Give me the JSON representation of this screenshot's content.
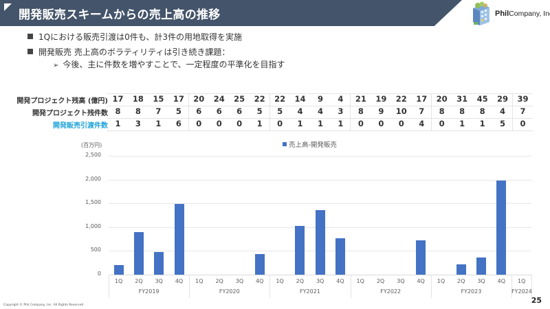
{
  "header": {
    "title": "開発販売スキームからの売上高の推移",
    "logo_brand": "Phil",
    "logo_suffix": "Company, Inc"
  },
  "bullets": [
    {
      "text": "1Qにおける販売引渡は0件も、計3件の用地取得を実施"
    },
    {
      "text": "開発販売 売上高のボラティリティは引き続き課題：",
      "sub": [
        {
          "text": "今後、主に件数を増やすことで、一定程度の平準化を目指す"
        }
      ]
    }
  ],
  "table": {
    "rows": [
      {
        "label": "開発プロジェクト残高 (億円)",
        "accent": false,
        "values": [
          "17",
          "18",
          "15",
          "17",
          "20",
          "24",
          "25",
          "22",
          "22",
          "14",
          "9",
          "4",
          "21",
          "19",
          "22",
          "17",
          "20",
          "31",
          "45",
          "29",
          "39"
        ]
      },
      {
        "label": "開発プロジェクト残件数",
        "accent": false,
        "values": [
          "8",
          "8",
          "7",
          "5",
          "6",
          "6",
          "6",
          "5",
          "5",
          "4",
          "4",
          "3",
          "8",
          "9",
          "10",
          "7",
          "8",
          "8",
          "8",
          "4",
          "7"
        ]
      },
      {
        "label": "開発販売引渡件数",
        "accent": true,
        "values": [
          "1",
          "3",
          "1",
          "6",
          "0",
          "0",
          "0",
          "1",
          "0",
          "1",
          "1",
          "1",
          "0",
          "0",
          "0",
          "4",
          "0",
          "1",
          "1",
          "5",
          "0"
        ]
      }
    ]
  },
  "chart_data": {
    "type": "bar",
    "title": "",
    "ylabel": "(百万円)",
    "xlabel": "",
    "ylim": [
      0,
      2500
    ],
    "yticks": [
      "0",
      "500",
      "1,000",
      "1,500",
      "2,000",
      "2,500"
    ],
    "ytick_values": [
      0,
      500,
      1000,
      1500,
      2000,
      2500
    ],
    "grid": true,
    "legend_position": "top",
    "categories": [
      "1Q",
      "2Q",
      "3Q",
      "4Q",
      "1Q",
      "2Q",
      "3Q",
      "4Q",
      "1Q",
      "2Q",
      "3Q",
      "4Q",
      "1Q",
      "2Q",
      "3Q",
      "4Q",
      "1Q",
      "2Q",
      "3Q",
      "4Q",
      "1Q"
    ],
    "fiscal_years": [
      {
        "label": "FY2019",
        "span": 4
      },
      {
        "label": "FY2020",
        "span": 4
      },
      {
        "label": "FY2021",
        "span": 4
      },
      {
        "label": "FY2022",
        "span": 4
      },
      {
        "label": "FY2023",
        "span": 4
      },
      {
        "label": "FY2024",
        "span": 1
      }
    ],
    "series": [
      {
        "name": "売上高-開発販売",
        "color": "#4472c4",
        "values": [
          200,
          900,
          470,
          1490,
          0,
          0,
          0,
          430,
          0,
          1030,
          1360,
          760,
          0,
          0,
          0,
          720,
          0,
          210,
          360,
          1980,
          0
        ]
      }
    ]
  },
  "footer": {
    "copyright": "Copyright © Phil Company, Inc.  All Rights Reserved",
    "page": "25"
  },
  "colors": {
    "header_bg": "#44546a",
    "bar": "#4472c4",
    "accent_label": "#1fa3d8"
  }
}
